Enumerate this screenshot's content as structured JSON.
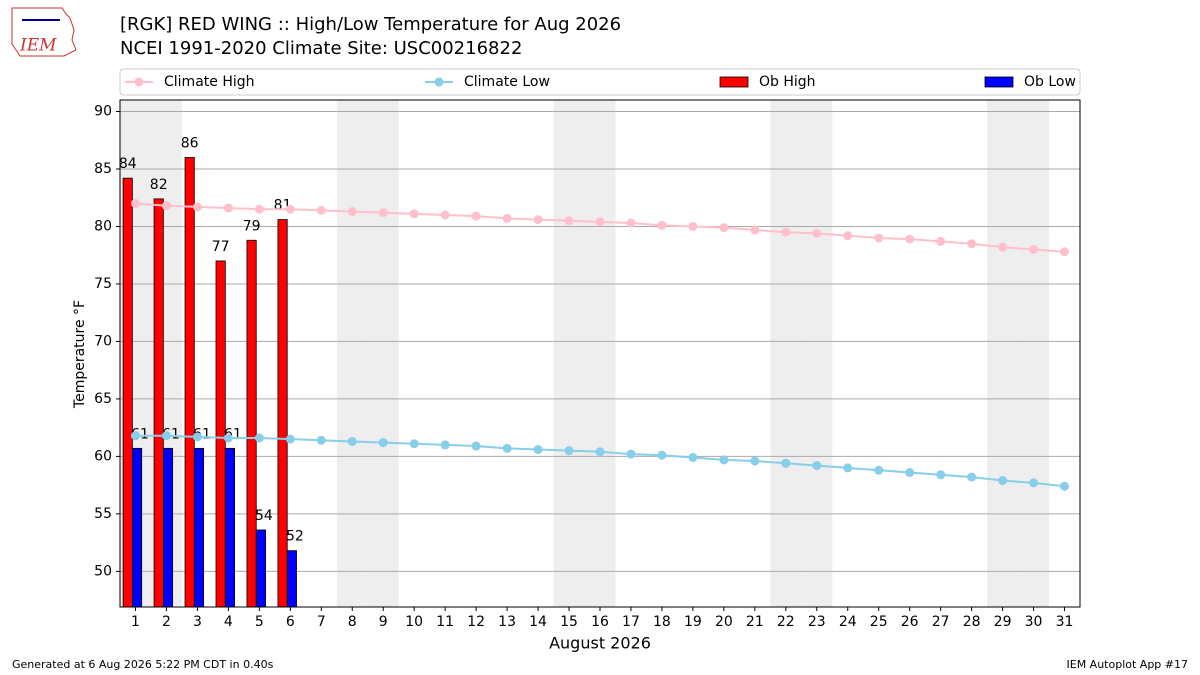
{
  "logo": "IEM",
  "footer_left": "Generated at 6 Aug 2026 5:22 PM CDT in 0.40s",
  "footer_right": "IEM Autoplot App #17",
  "chart_data": {
    "type": "bar",
    "title": "[RGK] RED WING :: High/Low Temperature for Aug 2026",
    "subtitle": "NCEI 1991-2020 Climate Site: USC00216822",
    "ylabel": "Temperature °F",
    "xlabel": "August 2026",
    "x": [
      1,
      2,
      3,
      4,
      5,
      6,
      7,
      8,
      9,
      10,
      11,
      12,
      13,
      14,
      15,
      16,
      17,
      18,
      19,
      20,
      21,
      22,
      23,
      24,
      25,
      26,
      27,
      28,
      29,
      30,
      31
    ],
    "xlim": [
      0.5,
      31.5
    ],
    "xticks": [
      1,
      2,
      3,
      4,
      5,
      6,
      7,
      8,
      9,
      10,
      11,
      12,
      13,
      14,
      15,
      16,
      17,
      18,
      19,
      20,
      21,
      22,
      23,
      24,
      25,
      26,
      27,
      28,
      29,
      30,
      31
    ],
    "ylim": [
      46.9,
      91
    ],
    "yticks": [
      50,
      55,
      60,
      65,
      70,
      75,
      80,
      85,
      90
    ],
    "grid": true,
    "shaded_x": [
      1,
      2,
      8,
      9,
      15,
      16,
      22,
      23,
      29,
      30
    ],
    "shade_color": "#eeeeee",
    "series": [
      {
        "name": "Climate High",
        "kind": "line",
        "color": "#ffc0cb",
        "values": [
          82.0,
          81.8,
          81.7,
          81.6,
          81.5,
          81.5,
          81.4,
          81.3,
          81.2,
          81.1,
          81.0,
          80.9,
          80.7,
          80.6,
          80.5,
          80.4,
          80.3,
          80.1,
          80.0,
          79.9,
          79.7,
          79.5,
          79.4,
          79.2,
          79.0,
          78.9,
          78.7,
          78.5,
          78.2,
          78.0,
          77.8
        ]
      },
      {
        "name": "Climate Low",
        "kind": "line",
        "color": "#87ceeb",
        "values": [
          61.8,
          61.8,
          61.7,
          61.6,
          61.6,
          61.5,
          61.4,
          61.3,
          61.2,
          61.1,
          61.0,
          60.9,
          60.7,
          60.6,
          60.5,
          60.4,
          60.2,
          60.1,
          59.9,
          59.7,
          59.6,
          59.4,
          59.2,
          59.0,
          58.8,
          58.6,
          58.4,
          58.2,
          57.9,
          57.7,
          57.4
        ]
      },
      {
        "name": "Ob High",
        "kind": "bar",
        "color": "#ff0000",
        "values": [
          84.2,
          82.4,
          86.0,
          77.0,
          78.8,
          80.6,
          null,
          null,
          null,
          null,
          null,
          null,
          null,
          null,
          null,
          null,
          null,
          null,
          null,
          null,
          null,
          null,
          null,
          null,
          null,
          null,
          null,
          null,
          null,
          null,
          null
        ],
        "value_labels": [
          "84",
          "82",
          "86",
          "77",
          "79",
          "81",
          null,
          null,
          null,
          null,
          null,
          null,
          null,
          null,
          null,
          null,
          null,
          null,
          null,
          null,
          null,
          null,
          null,
          null,
          null,
          null,
          null,
          null,
          null,
          null,
          null
        ]
      },
      {
        "name": "Ob Low",
        "kind": "bar",
        "color": "#0000ff",
        "values": [
          60.7,
          60.7,
          60.7,
          60.7,
          53.6,
          51.8,
          null,
          null,
          null,
          null,
          null,
          null,
          null,
          null,
          null,
          null,
          null,
          null,
          null,
          null,
          null,
          null,
          null,
          null,
          null,
          null,
          null,
          null,
          null,
          null,
          null
        ],
        "value_labels": [
          "61",
          "61",
          "61",
          "61",
          "54",
          "52",
          null,
          null,
          null,
          null,
          null,
          null,
          null,
          null,
          null,
          null,
          null,
          null,
          null,
          null,
          null,
          null,
          null,
          null,
          null,
          null,
          null,
          null,
          null,
          null,
          null
        ]
      }
    ]
  }
}
